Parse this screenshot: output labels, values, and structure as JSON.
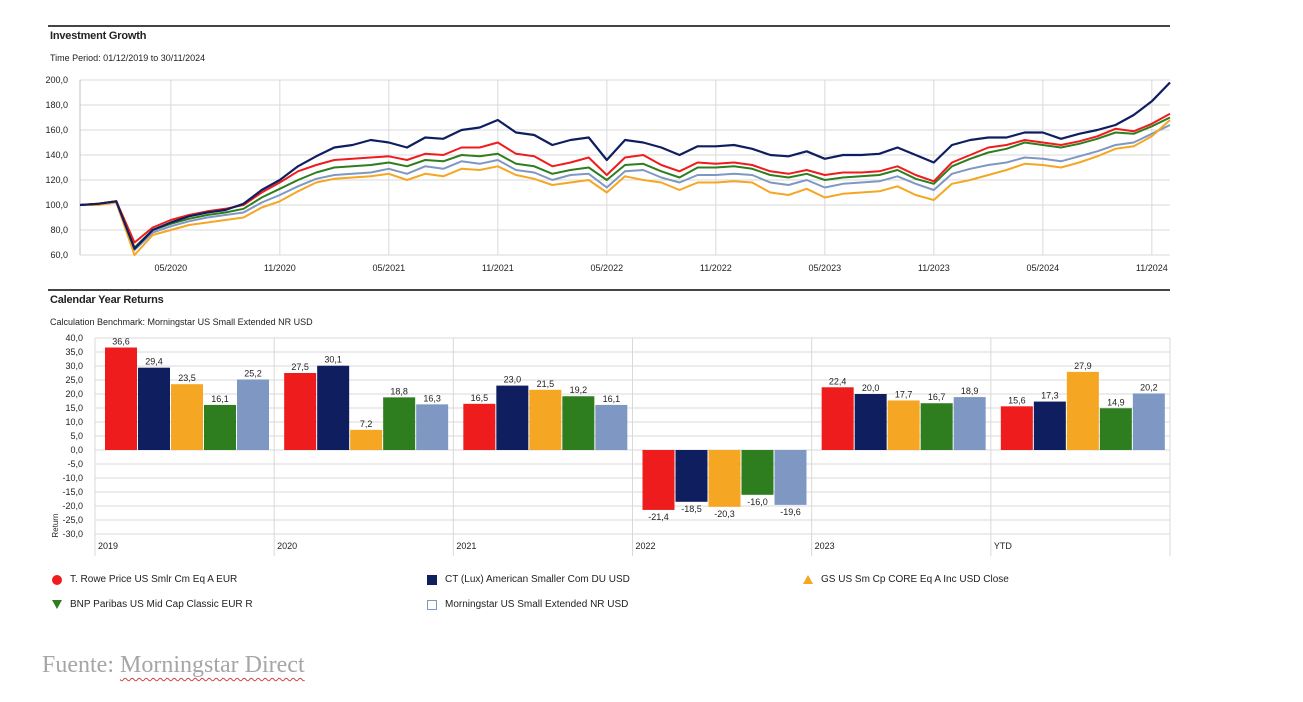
{
  "growth": {
    "title": "Investment Growth",
    "subtitle": "Time Period: 01/12/2019 to 30/11/2024"
  },
  "returns": {
    "title": "Calendar Year Returns",
    "subtitle": "Calculation Benchmark: Morningstar US Small Extended NR USD"
  },
  "legend": [
    {
      "label": "T. Rowe Price US Smlr Cm Eq A EUR",
      "marker": "circle",
      "color": "#ee1c1c"
    },
    {
      "label": "CT (Lux) American Smaller Com DU USD",
      "marker": "square",
      "color": "#0f1e5f"
    },
    {
      "label": "GS US Sm Cp CORE Eq A Inc USD Close",
      "marker": "triangle-up",
      "color": "#f5a623"
    },
    {
      "label": "BNP Paribas US Mid Cap Classic EUR R",
      "marker": "triangle-down",
      "color": "#2e7d1f"
    },
    {
      "label": "Morningstar US Small Extended NR USD",
      "marker": "square-outline",
      "color": "#7f98c3"
    }
  ],
  "source": {
    "prefix": "Fuente: ",
    "name": "Morningstar Direct"
  },
  "chart_data": [
    {
      "type": "line",
      "title": "Investment Growth",
      "subtitle": "Time Period: 01/12/2019 to 30/11/2024",
      "xlabel": "",
      "ylabel": "",
      "ylim": [
        60,
        200
      ],
      "yticks": [
        "60,0",
        "80,0",
        "100,0",
        "120,0",
        "140,0",
        "160,0",
        "180,0",
        "200,0"
      ],
      "yticks_values": [
        60,
        80,
        100,
        120,
        140,
        160,
        180,
        200
      ],
      "x_tick_labels": [
        "05/2020",
        "11/2020",
        "05/2021",
        "11/2021",
        "05/2022",
        "11/2022",
        "05/2023",
        "11/2023",
        "05/2024",
        "11/2024"
      ],
      "x_tick_months": [
        5,
        11,
        17,
        23,
        29,
        35,
        41,
        47,
        53,
        59
      ],
      "x_months": [
        0,
        1,
        2,
        3,
        4,
        5,
        6,
        7,
        8,
        9,
        10,
        11,
        12,
        13,
        14,
        15,
        16,
        17,
        18,
        19,
        20,
        21,
        22,
        23,
        24,
        25,
        26,
        27,
        28,
        29,
        30,
        31,
        32,
        33,
        34,
        35,
        36,
        37,
        38,
        39,
        40,
        41,
        42,
        43,
        44,
        45,
        46,
        47,
        48,
        49,
        50,
        51,
        52,
        53,
        54,
        55,
        56,
        57,
        58,
        59,
        60
      ],
      "grid": true,
      "series": [
        {
          "name": "T. Rowe Price US Smlr Cm Eq A EUR",
          "color": "#ee1c1c",
          "values": [
            100,
            101,
            103,
            70,
            82,
            88,
            92,
            95,
            97,
            100,
            110,
            118,
            127,
            132,
            136,
            137,
            138,
            139,
            136,
            141,
            140,
            146,
            146,
            150,
            141,
            139,
            131,
            134,
            138,
            124,
            138,
            140,
            132,
            127,
            134,
            133,
            134,
            132,
            127,
            125,
            128,
            124,
            126,
            126,
            127,
            131,
            124,
            119,
            134,
            140,
            146,
            148,
            152,
            150,
            148,
            151,
            155,
            161,
            159,
            165,
            173
          ]
        },
        {
          "name": "CT (Lux) American Smaller Com DU USD",
          "color": "#0f1e5f",
          "values": [
            100,
            101,
            103,
            65,
            80,
            86,
            91,
            94,
            96,
            101,
            112,
            120,
            131,
            139,
            146,
            148,
            152,
            150,
            146,
            154,
            153,
            160,
            162,
            168,
            158,
            156,
            148,
            152,
            154,
            136,
            152,
            150,
            146,
            140,
            147,
            147,
            148,
            145,
            140,
            139,
            143,
            137,
            140,
            140,
            141,
            146,
            140,
            134,
            148,
            152,
            154,
            154,
            158,
            158,
            153,
            157,
            160,
            164,
            172,
            183,
            198
          ]
        },
        {
          "name": "GS US Sm Cp CORE Eq A Inc USD Close",
          "color": "#f5a623",
          "values": [
            100,
            100,
            102,
            60,
            76,
            80,
            84,
            86,
            88,
            90,
            98,
            103,
            111,
            118,
            121,
            122,
            123,
            125,
            120,
            125,
            123,
            129,
            128,
            131,
            124,
            121,
            116,
            118,
            120,
            110,
            123,
            120,
            118,
            112,
            118,
            118,
            119,
            118,
            110,
            108,
            113,
            106,
            109,
            110,
            111,
            115,
            108,
            104,
            117,
            120,
            124,
            128,
            133,
            132,
            130,
            134,
            139,
            145,
            147,
            155,
            168
          ]
        },
        {
          "name": "BNP Paribas US Mid Cap Classic EUR R",
          "color": "#2e7d1f",
          "values": [
            100,
            101,
            103,
            66,
            80,
            85,
            89,
            92,
            94,
            97,
            106,
            113,
            120,
            126,
            130,
            131,
            132,
            134,
            131,
            136,
            135,
            140,
            139,
            141,
            133,
            131,
            125,
            128,
            130,
            120,
            132,
            133,
            127,
            122,
            130,
            130,
            131,
            129,
            124,
            122,
            125,
            120,
            122,
            123,
            124,
            128,
            121,
            117,
            131,
            137,
            142,
            145,
            150,
            148,
            146,
            149,
            153,
            158,
            157,
            163,
            170
          ]
        },
        {
          "name": "Morningstar US Small Extended NR USD",
          "color": "#7f98c3",
          "values": [
            100,
            101,
            103,
            64,
            78,
            83,
            87,
            90,
            92,
            94,
            102,
            108,
            115,
            121,
            124,
            125,
            126,
            129,
            125,
            131,
            129,
            135,
            133,
            136,
            128,
            126,
            120,
            124,
            125,
            114,
            127,
            128,
            122,
            118,
            124,
            124,
            125,
            124,
            118,
            116,
            120,
            114,
            117,
            118,
            119,
            123,
            117,
            112,
            125,
            129,
            132,
            134,
            138,
            137,
            135,
            139,
            143,
            148,
            150,
            157,
            164
          ]
        }
      ]
    },
    {
      "type": "bar",
      "title": "Calendar Year Returns",
      "subtitle": "Calculation Benchmark: Morningstar US Small Extended NR USD",
      "xlabel": "",
      "ylabel": "Return",
      "ylim": [
        -30,
        40
      ],
      "yticks": [
        "40,0",
        "35,0",
        "30,0",
        "25,0",
        "20,0",
        "15,0",
        "10,0",
        "5,0",
        "0,0",
        "-5,0",
        "-10,0",
        "-15,0",
        "-20,0",
        "-25,0",
        "-30,0"
      ],
      "yticks_values": [
        40,
        35,
        30,
        25,
        20,
        15,
        10,
        5,
        0,
        -5,
        -10,
        -15,
        -20,
        -25,
        -30
      ],
      "categories": [
        "2019",
        "2020",
        "2021",
        "2022",
        "2023",
        "YTD"
      ],
      "grid": true,
      "series": [
        {
          "name": "T. Rowe Price US Smlr Cm Eq A EUR",
          "color": "#ee1c1c",
          "values": [
            36.6,
            27.5,
            16.5,
            -21.4,
            22.4,
            15.6
          ],
          "labels": [
            "36,6",
            "27,5",
            "16,5",
            "-21,4",
            "22,4",
            "15,6"
          ]
        },
        {
          "name": "CT (Lux) American Smaller Com DU USD",
          "color": "#0f1e5f",
          "values": [
            29.4,
            30.1,
            23.0,
            -18.5,
            20.0,
            17.3
          ],
          "labels": [
            "29,4",
            "30,1",
            "23,0",
            "-18,5",
            "20,0",
            "17,3"
          ]
        },
        {
          "name": "GS US Sm Cp CORE Eq A Inc USD Close",
          "color": "#f5a623",
          "values": [
            23.5,
            7.2,
            21.5,
            -20.3,
            17.7,
            27.9
          ],
          "labels": [
            "23,5",
            "7,2",
            "21,5",
            "-20,3",
            "17,7",
            "27,9"
          ]
        },
        {
          "name": "BNP Paribas US Mid Cap Classic EUR R",
          "color": "#2e7d1f",
          "values": [
            16.1,
            18.8,
            19.2,
            -16.0,
            16.7,
            14.9
          ],
          "labels": [
            "16,1",
            "18,8",
            "19,2",
            "-16,0",
            "16,7",
            "14,9"
          ]
        },
        {
          "name": "Morningstar US Small Extended NR USD",
          "color": "#7f98c3",
          "values": [
            25.2,
            16.3,
            16.1,
            -19.6,
            18.9,
            20.2
          ],
          "labels": [
            "25,2",
            "16,3",
            "16,1",
            "-19,6",
            "18,9",
            "20,2"
          ]
        }
      ]
    }
  ]
}
